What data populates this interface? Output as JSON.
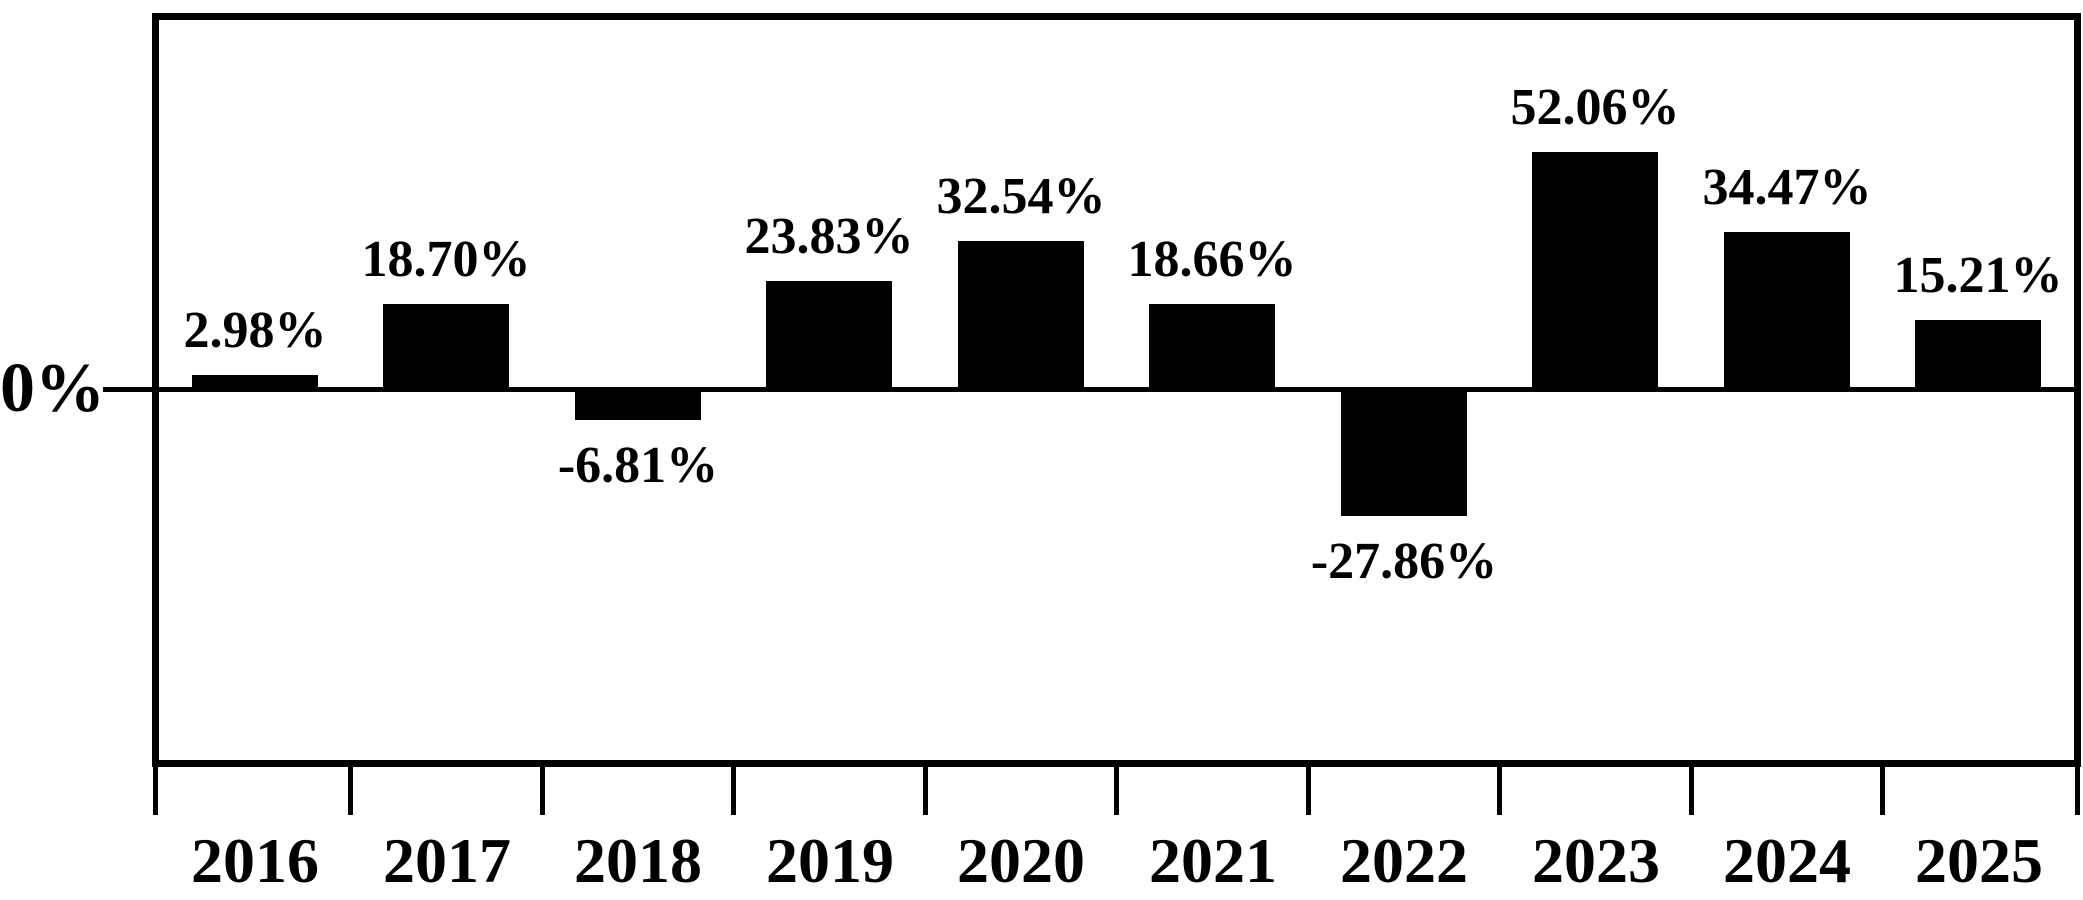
{
  "chart_data": {
    "type": "bar",
    "title": "",
    "xlabel": "",
    "ylabel": "",
    "categories": [
      "2016",
      "2017",
      "2018",
      "2019",
      "2020",
      "2021",
      "2022",
      "2023",
      "2024",
      "2025"
    ],
    "values": [
      2.98,
      18.7,
      -6.81,
      23.83,
      32.54,
      18.66,
      -27.86,
      52.06,
      34.47,
      15.21
    ],
    "value_labels": [
      "2.98%",
      "18.70%",
      "-6.81%",
      "23.83%",
      "32.54%",
      "18.66%",
      "-27.86%",
      "52.06%",
      "34.47%",
      "15.21%"
    ],
    "y_axis": {
      "zero_label": "0%",
      "ylim": [
        -83,
        83
      ],
      "ticks_shown": [
        "0%"
      ]
    },
    "bar_color": "#000000",
    "background_color": "#ffffff",
    "border_color": "#000000",
    "grid": false,
    "legend": false,
    "value_label_placement": "outside-end"
  }
}
